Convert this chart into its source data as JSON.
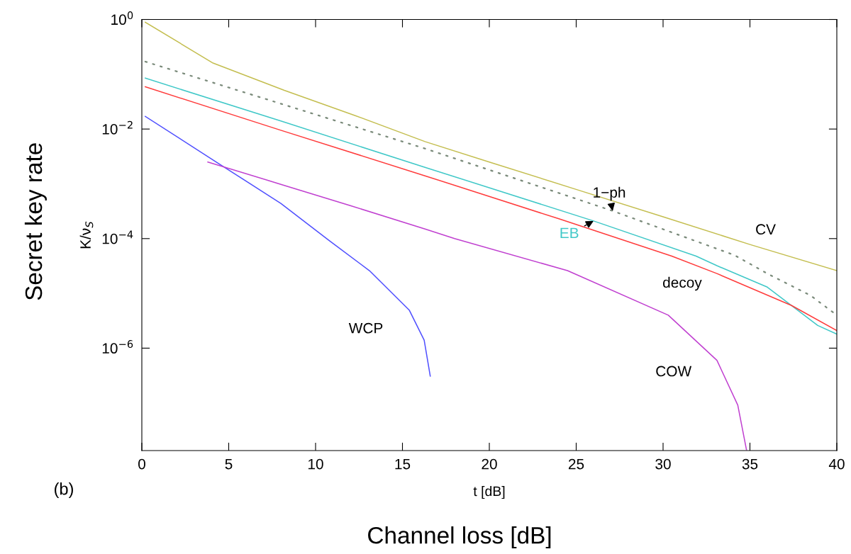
{
  "chart_data": {
    "type": "line",
    "log": "y",
    "xlabel": "t [dB]",
    "ylabel": "K/ν$_{S}$",
    "annotations": [
      "Secret key rate",
      "Channel loss [dB]",
      "(b)"
    ],
    "xlim": [
      0,
      40
    ],
    "xticks": [
      0,
      5,
      10,
      15,
      20,
      25,
      30,
      35,
      40
    ],
    "ylim": [
      1.35e-08,
      1
    ],
    "yticks": [
      {
        "value": 1,
        "label": "10$^{0}$"
      },
      {
        "value": 0.01,
        "label": "10$^{−2}$"
      },
      {
        "value": 0.0001,
        "label": "10$^{−4}$"
      },
      {
        "value": 1e-06,
        "label": "10$^{−6}$"
      }
    ],
    "series": [
      {
        "name": "CV",
        "color": "#c4be50",
        "x": [
          0.2,
          4.1,
          8.2,
          12.2,
          16.3,
          20,
          25,
          30,
          35,
          40
        ],
        "values": [
          0.89,
          0.16,
          0.051,
          0.018,
          0.0059,
          0.0025,
          0.00079,
          0.00025,
          7.8e-05,
          2.6e-05
        ]
      },
      {
        "name": "1−ph",
        "color": "#7a8a7a",
        "line_style": "dotted",
        "x": [
          0.2,
          8,
          16.3,
          27.1,
          34.1,
          36,
          38.5,
          40
        ],
        "values": [
          0.17,
          0.029,
          0.0044,
          0.00032,
          5e-05,
          2.3e-05,
          9.1e-06,
          4e-06
        ]
      },
      {
        "name": "EB",
        "color": "#40c8c8",
        "x": [
          0.2,
          8,
          16.3,
          26,
          31.9,
          33.1,
          36,
          38.9,
          40
        ],
        "values": [
          0.085,
          0.014,
          0.002,
          0.00021,
          4.8e-05,
          3.2e-05,
          1.3e-05,
          2.6e-06,
          1.8e-06
        ]
      },
      {
        "name": "decoy",
        "color": "#ff3c3c",
        "x": [
          0.2,
          8,
          16.3,
          24,
          30.5,
          33.1,
          37.4,
          40
        ],
        "values": [
          0.059,
          0.0095,
          0.0014,
          0.00023,
          4.8e-05,
          2.3e-05,
          6e-06,
          2.1e-06
        ]
      },
      {
        "name": "WCP",
        "color": "#5050ff",
        "x": [
          0.2,
          4.37,
          8,
          10.8,
          13.1,
          15.4,
          16.25,
          16.6
        ],
        "values": [
          0.017,
          0.0024,
          0.00044,
          9.1e-05,
          2.6e-05,
          4.9e-06,
          1.4e-06,
          3.1e-07
        ]
      },
      {
        "name": "COW",
        "color": "#c040d0",
        "x": [
          3.8,
          8,
          12,
          16.3,
          18,
          24.5,
          30.3,
          33.1,
          34.3,
          34.8
        ],
        "values": [
          0.0025,
          0.00098,
          0.0004,
          0.00015,
          0.0001,
          2.6e-05,
          4e-06,
          6e-07,
          9.1e-08,
          1.4e-08
        ]
      }
    ]
  }
}
